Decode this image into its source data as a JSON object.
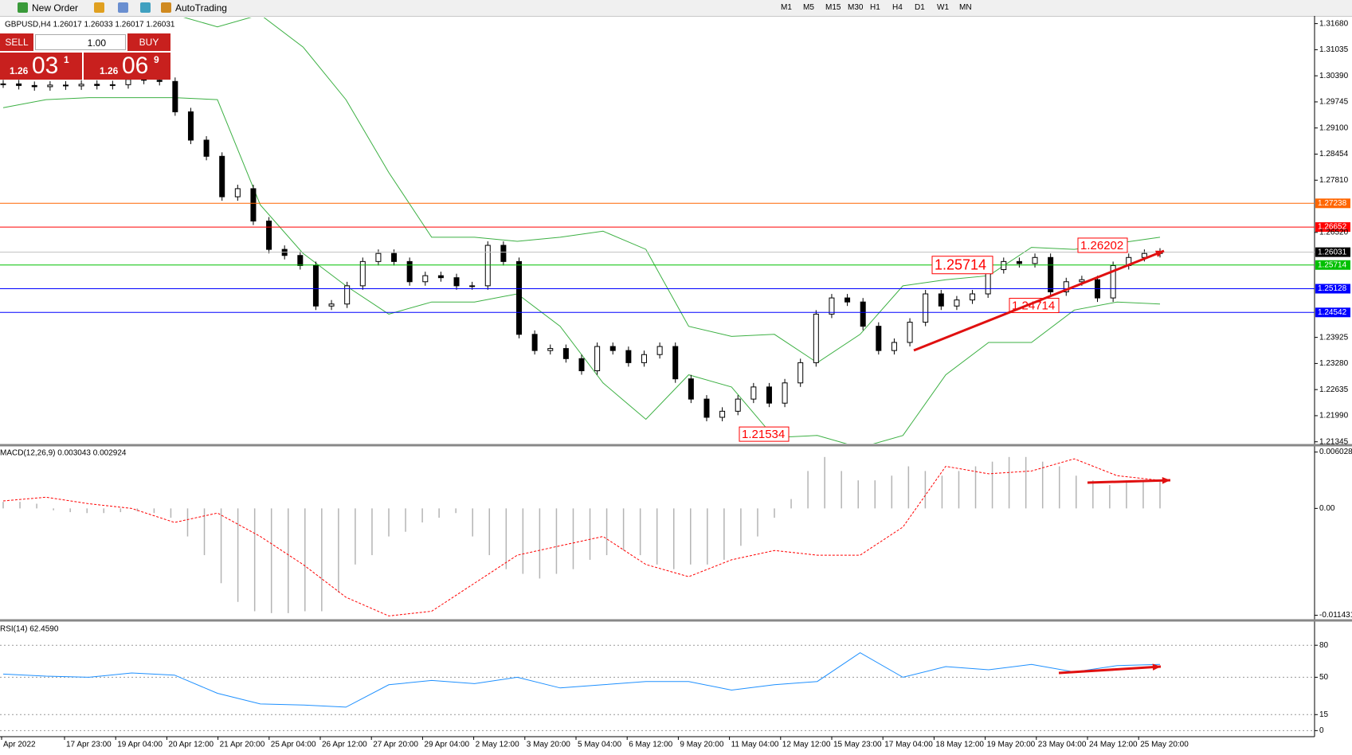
{
  "toolbar": {
    "new_order": "New Order",
    "auto_trading": "AutoTrading",
    "timeframes": [
      "M1",
      "M5",
      "M15",
      "M30",
      "H1",
      "H4",
      "D1",
      "W1",
      "MN"
    ]
  },
  "trade_panel": {
    "sell": "SELL",
    "lot": "1.00",
    "buy": "BUY",
    "bid": {
      "prefix": "1.26",
      "big": "03",
      "small": "1"
    },
    "ask": {
      "prefix": "1.26",
      "big": "06",
      "small": "9"
    }
  },
  "price_chart": {
    "type": "candlestick",
    "header": "GBPUSD,H4  1.26017 1.26033 1.26017 1.26031",
    "closes": [
      1.3019,
      1.3015,
      1.3012,
      1.3016,
      1.3014,
      1.3018,
      1.3015,
      1.3017,
      1.303,
      1.3028,
      1.3025,
      1.295,
      1.288,
      1.284,
      1.274,
      1.276,
      1.268,
      1.261,
      1.2595,
      1.257,
      1.247,
      1.2475,
      1.252,
      1.258,
      1.26,
      1.258,
      1.253,
      1.2545,
      1.254,
      1.252,
      1.252,
      1.262,
      1.258,
      1.24,
      1.236,
      1.2365,
      1.234,
      1.231,
      1.237,
      1.236,
      1.233,
      1.235,
      1.237,
      1.229,
      1.224,
      1.2195,
      1.221,
      1.224,
      1.227,
      1.223,
      1.228,
      1.233,
      1.245,
      1.249,
      1.248,
      1.242,
      1.236,
      1.238,
      1.243,
      1.25,
      1.247,
      1.2485,
      1.25,
      1.256,
      1.258,
      1.2575,
      1.259,
      1.2505,
      1.253,
      1.2535,
      1.249,
      1.257,
      1.259,
      1.26,
      1.2603
    ],
    "upper_band": [
      1.319,
      1.319,
      1.319,
      1.319,
      1.319,
      1.316,
      1.319,
      1.311,
      1.298,
      1.28,
      1.264,
      1.264,
      1.263,
      1.264,
      1.2655,
      1.261,
      1.242,
      1.2395,
      1.24,
      1.233,
      1.24,
      1.252,
      1.2535,
      1.2545,
      1.2615,
      1.261,
      1.2625,
      1.264
    ],
    "lower_band": [
      1.296,
      1.298,
      1.2985,
      1.2985,
      1.2985,
      1.298,
      1.272,
      1.26,
      1.252,
      1.245,
      1.248,
      1.248,
      1.25,
      1.242,
      1.228,
      1.219,
      1.23,
      1.227,
      1.2145,
      1.215,
      1.212,
      1.215,
      1.23,
      1.238,
      1.238,
      1.246,
      1.248,
      1.2475
    ],
    "band_color": "#3cb043",
    "bull_color": "#ffffff",
    "bear_color": "#000000",
    "ylim": [
      1.213,
      1.3183
    ],
    "yticks": [
      {
        "value": 1.3168,
        "label": "1.31680"
      },
      {
        "value": 1.31035,
        "label": "1.31035"
      },
      {
        "value": 1.3039,
        "label": "1.30390"
      },
      {
        "value": 1.29745,
        "label": "1.29745"
      },
      {
        "value": 1.291,
        "label": "1.29100"
      },
      {
        "value": 1.28454,
        "label": "1.28454"
      },
      {
        "value": 1.2781,
        "label": "1.27810"
      },
      {
        "value": 1.2652,
        "label": "1.26520"
      },
      {
        "value": 1.23925,
        "label": "1.23925"
      },
      {
        "value": 1.2328,
        "label": "1.23280"
      },
      {
        "value": 1.22635,
        "label": "1.22635"
      },
      {
        "value": 1.2199,
        "label": "1.21990"
      },
      {
        "value": 1.21345,
        "label": "1.21345"
      }
    ],
    "levels": [
      {
        "value": 1.27238,
        "color": "#ff6600"
      },
      {
        "value": 1.26652,
        "color": "#ff0000"
      },
      {
        "value": 1.26031,
        "color": "#000000"
      },
      {
        "value": 1.25714,
        "color": "#00c000"
      },
      {
        "value": 1.25128,
        "color": "#0000ff"
      },
      {
        "value": 1.24542,
        "color": "#0000ff"
      }
    ],
    "annotations": [
      1.25714,
      1.24714,
      1.26202,
      1.21534
    ]
  },
  "macd": {
    "header": "MACD(12,26,9) 0.003043 0.002924",
    "histogram": [
      0.0007,
      0.0007,
      0.0005,
      -0.0002,
      -0.0004,
      -0.0005,
      -0.0005,
      -0.0004,
      -0.0003,
      -0.0005,
      -0.001,
      -0.003,
      -0.005,
      -0.008,
      -0.01,
      -0.011,
      -0.0112,
      -0.0112,
      -0.011,
      -0.011,
      -0.009,
      -0.006,
      -0.005,
      -0.003,
      -0.0025,
      -0.0015,
      -0.001,
      -0.0005,
      -0.003,
      -0.005,
      -0.0065,
      -0.007,
      -0.0075,
      -0.007,
      -0.0065,
      -0.0055,
      -0.005,
      -0.0045,
      -0.005,
      -0.006,
      -0.0065,
      -0.006,
      -0.006,
      -0.0055,
      -0.004,
      -0.003,
      -0.001,
      0.001,
      0.004,
      0.0055,
      0.004,
      0.003,
      0.003,
      0.0035,
      0.0045,
      0.004,
      0.0035,
      0.004,
      0.0045,
      0.005,
      0.0055,
      0.0055,
      0.005,
      0.0045,
      0.0035,
      0.003,
      0.0025,
      0.003,
      0.003,
      0.003
    ],
    "signal": [
      0.0008,
      0.0012,
      0.0005,
      0.0,
      -0.0015,
      -0.0005,
      -0.003,
      -0.006,
      -0.0095,
      -0.0115,
      -0.011,
      -0.008,
      -0.005,
      -0.004,
      -0.003,
      -0.006,
      -0.0073,
      -0.0055,
      -0.0045,
      -0.005,
      -0.005,
      -0.002,
      0.0045,
      0.0037,
      0.004,
      0.0053,
      0.0035,
      0.003
    ],
    "ylim": [
      -0.01181,
      0.00659
    ],
    "yticks": [
      0.006028,
      {
        "value": 0,
        "label": "0.00"
      },
      -0.011431
    ],
    "hist_color": "#b4b4b4",
    "signal_color": "#ff0000"
  },
  "rsi": {
    "header": "RSI(14) 62.4590",
    "values": [
      53,
      51,
      50,
      54,
      52,
      35,
      25,
      24,
      22,
      43,
      47,
      44,
      50,
      40,
      43,
      46,
      46,
      38,
      43,
      46,
      73,
      50,
      60,
      57,
      62,
      55,
      61,
      62
    ],
    "ylim": [
      -5.7,
      101.8
    ],
    "yticks": [
      80,
      50,
      15,
      0
    ],
    "color": "#1e90ff"
  },
  "time_axis": {
    "labels": [
      "Apr 2022",
      "17 Apr 23:00",
      "19 Apr 04:00",
      "20 Apr 12:00",
      "21 Apr 20:00",
      "25 Apr 04:00",
      "26 Apr 12:00",
      "27 Apr 20:00",
      "29 Apr 04:00",
      "2 May 12:00",
      "3 May 20:00",
      "5 May 04:00",
      "6 May 12:00",
      "9 May 20:00",
      "11 May 04:00",
      "12 May 12:00",
      "15 May 23:00",
      "17 May 04:00",
      "18 May 12:00",
      "19 May 20:00",
      "23 May 04:00",
      "24 May 12:00",
      "25 May 20:00"
    ]
  }
}
